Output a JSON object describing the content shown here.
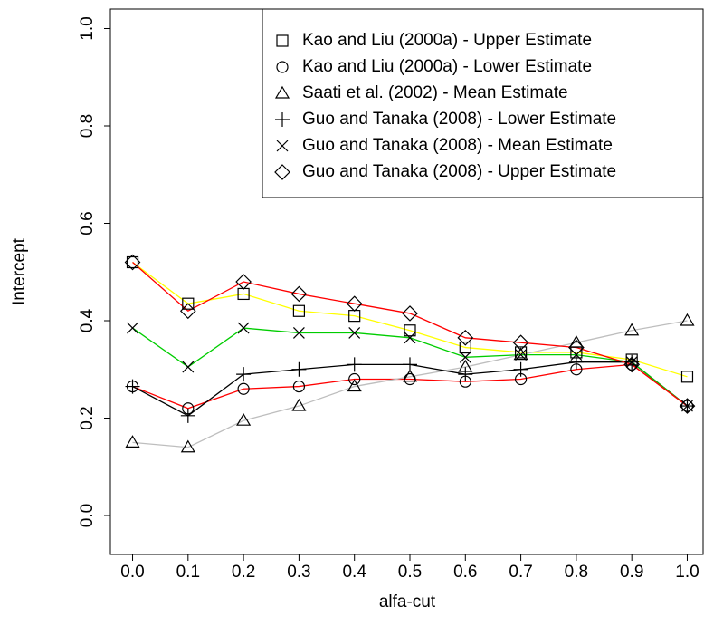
{
  "chart_data": {
    "type": "line",
    "x_label": "alfa-cut",
    "y_label": "Intercept",
    "x": [
      0,
      0.1,
      0.2,
      0.3,
      0.4,
      0.5,
      0.6,
      0.7,
      0.8,
      0.9,
      1
    ],
    "xlim": [
      -0.04,
      1.04
    ],
    "ylim": [
      -0.08,
      1.04
    ],
    "xticks": [
      {
        "value": 0,
        "label": "0.0"
      },
      {
        "value": 0.1,
        "label": "0.1"
      },
      {
        "value": 0.2,
        "label": "0.2"
      },
      {
        "value": 0.3,
        "label": "0.3"
      },
      {
        "value": 0.4,
        "label": "0.4"
      },
      {
        "value": 0.5,
        "label": "0.5"
      },
      {
        "value": 0.6,
        "label": "0.6"
      },
      {
        "value": 0.7,
        "label": "0.7"
      },
      {
        "value": 0.8,
        "label": "0.8"
      },
      {
        "value": 0.9,
        "label": "0.9"
      },
      {
        "value": 1,
        "label": "1.0"
      }
    ],
    "yticks": [
      {
        "value": 0,
        "label": "0.0"
      },
      {
        "value": 0.2,
        "label": "0.2"
      },
      {
        "value": 0.4,
        "label": "0.4"
      },
      {
        "value": 0.6,
        "label": "0.6"
      },
      {
        "value": 0.8,
        "label": "0.8"
      },
      {
        "value": 1,
        "label": "1.0"
      }
    ],
    "legend_position": "top-right",
    "series": [
      {
        "name": "Kao and Liu (2000a) - Upper Estimate",
        "marker": "square",
        "color": "#ffff00",
        "values": [
          0.52,
          0.435,
          0.455,
          0.42,
          0.41,
          0.38,
          0.345,
          0.335,
          0.335,
          0.32,
          0.285
        ]
      },
      {
        "name": "Kao and Liu (2000a) - Lower Estimate",
        "marker": "circle",
        "color": "#ff0000",
        "values": [
          0.265,
          0.22,
          0.26,
          0.265,
          0.28,
          0.28,
          0.275,
          0.28,
          0.3,
          0.31,
          0.225
        ]
      },
      {
        "name": "Saati et al. (2002) - Mean Estimate",
        "marker": "triangle",
        "color": "#bebebe",
        "values": [
          0.15,
          0.14,
          0.195,
          0.225,
          0.265,
          0.285,
          0.305,
          0.33,
          0.355,
          0.38,
          0.4
        ]
      },
      {
        "name": "Guo and Tanaka (2008) - Lower Estimate",
        "marker": "plus",
        "color": "#000000",
        "values": [
          0.265,
          0.205,
          0.29,
          0.3,
          0.31,
          0.31,
          0.29,
          0.3,
          0.315,
          0.315,
          0.225
        ]
      },
      {
        "name": "Guo and Tanaka (2008) - Mean Estimate",
        "marker": "cross",
        "color": "#00cd00",
        "values": [
          0.385,
          0.305,
          0.385,
          0.375,
          0.375,
          0.365,
          0.325,
          0.33,
          0.33,
          0.315,
          0.225
        ]
      },
      {
        "name": "Guo and Tanaka (2008) - Upper Estimate",
        "marker": "diamond",
        "color": "#ff0000",
        "values": [
          0.52,
          0.42,
          0.48,
          0.455,
          0.435,
          0.415,
          0.365,
          0.355,
          0.345,
          0.31,
          0.225
        ]
      }
    ]
  }
}
